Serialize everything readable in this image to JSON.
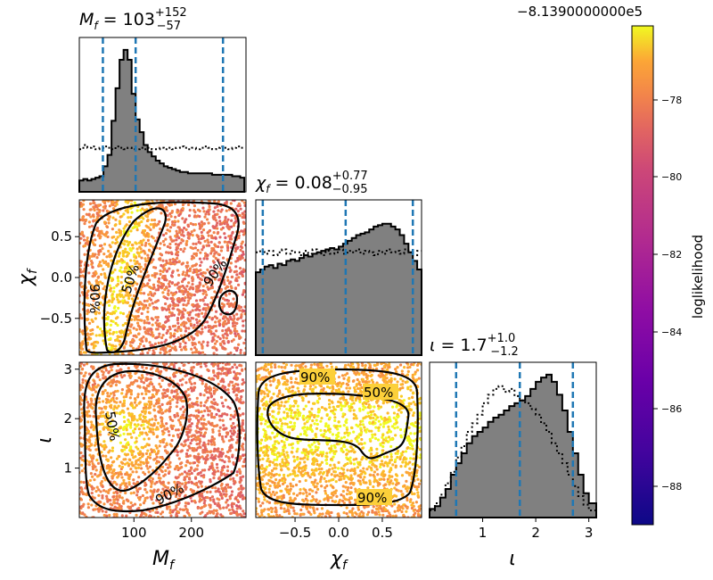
{
  "figure": {
    "offset_label": "−8.1390000000e5",
    "colorbar_label": "loglikelihood",
    "colorbar_ticks": [
      "−78",
      "−80",
      "−82",
      "−84",
      "−86",
      "−88"
    ],
    "percent_50": "50%",
    "percent_90": "90%"
  },
  "chart_data": [
    {
      "type": "histogram",
      "panel": "Mf-marginal",
      "title_sym": "M",
      "title_sub": "f",
      "title_eq": " = 103",
      "title_sup": "+152",
      "title_inf": "−57",
      "xlim": [
        5,
        295
      ],
      "quantile_lines": [
        46,
        103,
        255
      ],
      "bins_x": [
        5,
        12,
        19,
        26,
        33,
        40,
        47,
        54,
        61,
        68,
        75,
        82,
        89,
        96,
        103,
        110,
        117,
        124,
        131,
        138,
        145,
        152,
        159,
        166,
        173,
        180,
        187,
        194,
        201,
        208,
        215,
        222,
        229,
        236,
        243,
        250,
        257,
        264,
        271,
        278,
        285,
        292
      ],
      "posterior_rel": [
        0.08,
        0.09,
        0.08,
        0.09,
        0.1,
        0.11,
        0.18,
        0.26,
        0.5,
        0.73,
        0.93,
        1.0,
        0.93,
        0.69,
        0.51,
        0.42,
        0.33,
        0.28,
        0.25,
        0.22,
        0.2,
        0.18,
        0.17,
        0.16,
        0.15,
        0.14,
        0.14,
        0.13,
        0.13,
        0.13,
        0.13,
        0.13,
        0.13,
        0.12,
        0.12,
        0.12,
        0.12,
        0.12,
        0.11,
        0.11,
        0.1
      ],
      "prior_rel": [
        0.3,
        0.33,
        0.31,
        0.32,
        0.3,
        0.31,
        0.32,
        0.31,
        0.3,
        0.32,
        0.31,
        0.3,
        0.31,
        0.3,
        0.3,
        0.31,
        0.3,
        0.31,
        0.3,
        0.3,
        0.31,
        0.3,
        0.31,
        0.3,
        0.31,
        0.32,
        0.31,
        0.3,
        0.31,
        0.3,
        0.31,
        0.32,
        0.31,
        0.3,
        0.31,
        0.32,
        0.31,
        0.3,
        0.31,
        0.32,
        0.31
      ]
    },
    {
      "type": "scatter",
      "panel": "chif-vs-Mf",
      "ylabel_sym": "χ",
      "ylabel_sub": "f",
      "xlim": [
        5,
        295
      ],
      "ylim": [
        -0.95,
        0.95
      ],
      "yticks": [
        0.5,
        0.0,
        -0.5
      ],
      "ytick_labels": [
        "0.5",
        "0.0",
        "−0.5"
      ]
    },
    {
      "type": "histogram",
      "panel": "chif-marginal",
      "title_sym": "χ",
      "title_sub": "f",
      "title_eq": " = 0.08",
      "title_sup": "+0.77",
      "title_inf": "−0.95",
      "xlim": [
        -0.95,
        0.95
      ],
      "quantile_lines": [
        -0.87,
        0.08,
        0.85
      ],
      "bins_x": [
        -0.95,
        -0.9,
        -0.85,
        -0.8,
        -0.75,
        -0.7,
        -0.65,
        -0.6,
        -0.55,
        -0.5,
        -0.45,
        -0.4,
        -0.35,
        -0.3,
        -0.25,
        -0.2,
        -0.15,
        -0.1,
        -0.05,
        0.0,
        0.05,
        0.1,
        0.15,
        0.2,
        0.25,
        0.3,
        0.35,
        0.4,
        0.45,
        0.5,
        0.55,
        0.6,
        0.65,
        0.7,
        0.75,
        0.8,
        0.85,
        0.9,
        0.95
      ],
      "posterior_rel": [
        0.58,
        0.6,
        0.62,
        0.63,
        0.61,
        0.64,
        0.63,
        0.66,
        0.67,
        0.66,
        0.68,
        0.7,
        0.69,
        0.71,
        0.72,
        0.73,
        0.74,
        0.75,
        0.74,
        0.76,
        0.78,
        0.8,
        0.82,
        0.84,
        0.85,
        0.86,
        0.88,
        0.9,
        0.91,
        0.92,
        0.92,
        0.9,
        0.88,
        0.84,
        0.78,
        0.72,
        0.66,
        0.6
      ],
      "prior_rel": [
        0.72,
        0.74,
        0.71,
        0.73,
        0.7,
        0.72,
        0.74,
        0.71,
        0.73,
        0.72,
        0.7,
        0.73,
        0.71,
        0.74,
        0.72,
        0.7,
        0.73,
        0.71,
        0.72,
        0.74,
        0.71,
        0.73,
        0.72,
        0.74,
        0.71,
        0.73,
        0.72,
        0.7,
        0.73,
        0.71,
        0.74,
        0.72,
        0.73,
        0.71,
        0.74,
        0.72,
        0.7,
        0.73
      ]
    },
    {
      "type": "scatter",
      "panel": "iota-vs-Mf",
      "xlabel_sym": "M",
      "xlabel_sub": "f",
      "ylabel_sym": "ι",
      "xlim": [
        5,
        295
      ],
      "ylim": [
        0.0,
        3.14
      ],
      "xticks": [
        100,
        200
      ],
      "xtick_labels": [
        "100",
        "200"
      ],
      "yticks": [
        3,
        2,
        1
      ],
      "ytick_labels": [
        "3",
        "2",
        "1"
      ]
    },
    {
      "type": "scatter",
      "panel": "iota-vs-chif",
      "xlabel_sym": "χ",
      "xlabel_sub": "f",
      "xlim": [
        -0.95,
        0.95
      ],
      "ylim": [
        0.0,
        3.14
      ],
      "xticks": [
        -0.5,
        0.0,
        0.5
      ],
      "xtick_labels": [
        "−0.5",
        "0.0",
        "0.5"
      ]
    },
    {
      "type": "histogram",
      "panel": "iota-marginal",
      "title_sym": "ι",
      "title_eq": " = 1.7",
      "title_sup": "+1.0",
      "title_inf": "−1.2",
      "xlabel_sym": "ι",
      "xlim": [
        0.0,
        3.14
      ],
      "quantile_lines": [
        0.5,
        1.7,
        2.7
      ],
      "xticks": [
        1,
        2,
        3
      ],
      "xtick_labels": [
        "1",
        "2",
        "3"
      ],
      "bins_x": [
        0.0,
        0.1,
        0.2,
        0.3,
        0.4,
        0.5,
        0.6,
        0.7,
        0.8,
        0.9,
        1.0,
        1.1,
        1.2,
        1.3,
        1.4,
        1.5,
        1.6,
        1.7,
        1.8,
        1.9,
        2.0,
        2.1,
        2.2,
        2.3,
        2.4,
        2.5,
        2.6,
        2.7,
        2.8,
        2.9,
        3.0,
        3.14
      ],
      "posterior_rel": [
        0.06,
        0.08,
        0.14,
        0.2,
        0.3,
        0.38,
        0.45,
        0.52,
        0.57,
        0.6,
        0.63,
        0.67,
        0.7,
        0.72,
        0.75,
        0.78,
        0.8,
        0.82,
        0.85,
        0.9,
        0.95,
        0.98,
        1.0,
        0.95,
        0.86,
        0.75,
        0.6,
        0.45,
        0.3,
        0.17,
        0.1
      ],
      "prior_rel": [
        0.05,
        0.1,
        0.16,
        0.24,
        0.32,
        0.42,
        0.5,
        0.6,
        0.66,
        0.72,
        0.8,
        0.86,
        0.9,
        0.92,
        0.88,
        0.9,
        0.85,
        0.82,
        0.8,
        0.76,
        0.72,
        0.66,
        0.6,
        0.52,
        0.45,
        0.38,
        0.3,
        0.22,
        0.15,
        0.09,
        0.05
      ]
    }
  ]
}
